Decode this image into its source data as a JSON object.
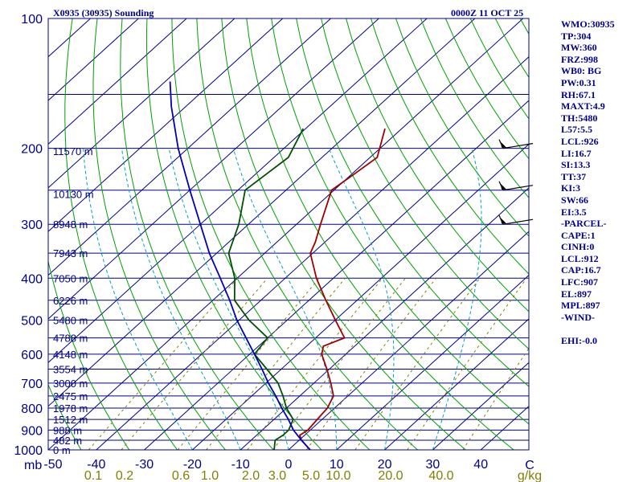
{
  "title": {
    "station": "X0935 (30935) Sounding",
    "time": "0000Z 11 OCT 25"
  },
  "colors": {
    "isobar": "#00008b",
    "isotherm": "#00008b",
    "dry_adiabat": "#00a000",
    "moist_adiabat": "#00a0c0",
    "mixing_ratio": "#808000",
    "temperature": "#a00000",
    "dewpoint": "#005000",
    "parcel": "#0000b4",
    "axis_text": "#00008b",
    "mixing_text": "#808000"
  },
  "chart_data": {
    "type": "line",
    "diagram": "skew-T log-P",
    "pressure_levels_mb": [
      100,
      200,
      300,
      400,
      500,
      600,
      700,
      800,
      900,
      1000
    ],
    "pressure_axis_label": "mb",
    "temperature_ticks_c": [
      -50,
      -40,
      -30,
      -20,
      -10,
      0,
      10,
      20,
      30,
      40
    ],
    "temperature_axis_label": "C",
    "mixing_ratio_labels": [
      "0.1",
      "0.2",
      "0.6",
      "1.0",
      "2.0",
      "3.0",
      "5.0",
      "10.0",
      "20.0",
      "40.0"
    ],
    "mixing_ratio_unit": "g/kg",
    "height_labels": [
      {
        "p": 203,
        "label": "11570 m"
      },
      {
        "p": 255,
        "label": "10130 m"
      },
      {
        "p": 300,
        "label": "8948 m"
      },
      {
        "p": 350,
        "label": "7943 m"
      },
      {
        "p": 400,
        "label": "7050 m"
      },
      {
        "p": 450,
        "label": "6226 m"
      },
      {
        "p": 500,
        "label": "5480 m"
      },
      {
        "p": 550,
        "label": "4788 m"
      },
      {
        "p": 600,
        "label": "4148 m"
      },
      {
        "p": 650,
        "label": "3554 m"
      },
      {
        "p": 700,
        "label": "3000 m"
      },
      {
        "p": 750,
        "label": "2475 m"
      },
      {
        "p": 800,
        "label": "1978 m"
      },
      {
        "p": 850,
        "label": "1512 m"
      },
      {
        "p": 900,
        "label": "988 m"
      },
      {
        "p": 950,
        "label": "482 m"
      },
      {
        "p": 1000,
        "label": "0 m"
      }
    ],
    "series": [
      {
        "name": "temperature",
        "points": [
          {
            "p": 1000,
            "t": 4.5
          },
          {
            "p": 950,
            "t": 0.5
          },
          {
            "p": 925,
            "t": -1.0
          },
          {
            "p": 900,
            "t": -0.5
          },
          {
            "p": 850,
            "t": -1.0
          },
          {
            "p": 800,
            "t": -1.5
          },
          {
            "p": 750,
            "t": -3.0
          },
          {
            "p": 700,
            "t": -6.5
          },
          {
            "p": 650,
            "t": -10.5
          },
          {
            "p": 600,
            "t": -15.0
          },
          {
            "p": 575,
            "t": -16.5
          },
          {
            "p": 550,
            "t": -14.0
          },
          {
            "p": 500,
            "t": -20.0
          },
          {
            "p": 450,
            "t": -26.5
          },
          {
            "p": 400,
            "t": -33.5
          },
          {
            "p": 350,
            "t": -40.5
          },
          {
            "p": 330,
            "t": -42.0
          },
          {
            "p": 300,
            "t": -45.0
          },
          {
            "p": 250,
            "t": -50.5
          },
          {
            "p": 230,
            "t": -49.5
          },
          {
            "p": 210,
            "t": -48.5
          },
          {
            "p": 180,
            "t": -53.5
          }
        ]
      },
      {
        "name": "dewpoint",
        "points": [
          {
            "p": 1000,
            "t": -3.0
          },
          {
            "p": 950,
            "t": -5.0
          },
          {
            "p": 925,
            "t": -4.5
          },
          {
            "p": 900,
            "t": -4.5
          },
          {
            "p": 850,
            "t": -6.0
          },
          {
            "p": 800,
            "t": -10.0
          },
          {
            "p": 750,
            "t": -13.5
          },
          {
            "p": 700,
            "t": -17.5
          },
          {
            "p": 650,
            "t": -23.0
          },
          {
            "p": 600,
            "t": -29.0
          },
          {
            "p": 550,
            "t": -30.0
          },
          {
            "p": 500,
            "t": -38.0
          },
          {
            "p": 450,
            "t": -45.5
          },
          {
            "p": 400,
            "t": -50.5
          },
          {
            "p": 350,
            "t": -57.5
          },
          {
            "p": 300,
            "t": -62.0
          },
          {
            "p": 250,
            "t": -68.5
          },
          {
            "p": 210,
            "t": -67.0
          },
          {
            "p": 180,
            "t": -70.5
          }
        ]
      },
      {
        "name": "parcel",
        "points": [
          {
            "p": 1000,
            "t": 4.5
          },
          {
            "p": 950,
            "t": 0.5
          },
          {
            "p": 900,
            "t": -3.5
          },
          {
            "p": 850,
            "t": -7.0
          },
          {
            "p": 800,
            "t": -11.0
          },
          {
            "p": 750,
            "t": -15.0
          },
          {
            "p": 700,
            "t": -19.5
          },
          {
            "p": 650,
            "t": -24.0
          },
          {
            "p": 600,
            "t": -29.0
          },
          {
            "p": 550,
            "t": -34.5
          },
          {
            "p": 500,
            "t": -40.5
          },
          {
            "p": 450,
            "t": -46.5
          },
          {
            "p": 400,
            "t": -53.5
          },
          {
            "p": 350,
            "t": -61.5
          },
          {
            "p": 300,
            "t": -70.0
          },
          {
            "p": 250,
            "t": -80.0
          },
          {
            "p": 200,
            "t": -92.0
          },
          {
            "p": 160,
            "t": -103.0
          },
          {
            "p": 140,
            "t": -109.0
          }
        ]
      }
    ],
    "wind_barbs": [
      {
        "p": 200
      },
      {
        "p": 250
      },
      {
        "p": 300
      }
    ]
  },
  "indices": [
    "WMO:30935",
    "TP:304",
    "MW:360",
    "FRZ:998",
    "WB0: BG",
    "PW:0.31",
    "RH:67.1",
    "MAXT:4.9",
    "TH:5480",
    "L57:5.5",
    "LCL:926",
    "LI:16.7",
    "SI:13.3",
    "TT:37",
    "KI:3",
    "SW:66",
    "EI:3.5",
    "-PARCEL-",
    "CAPE:1",
    "CINH:0",
    "LCL:912",
    "CAP:16.7",
    "LFC:907",
    "EL:897",
    "MPL:897",
    "-WIND-",
    "",
    "EHI:-0.0"
  ]
}
